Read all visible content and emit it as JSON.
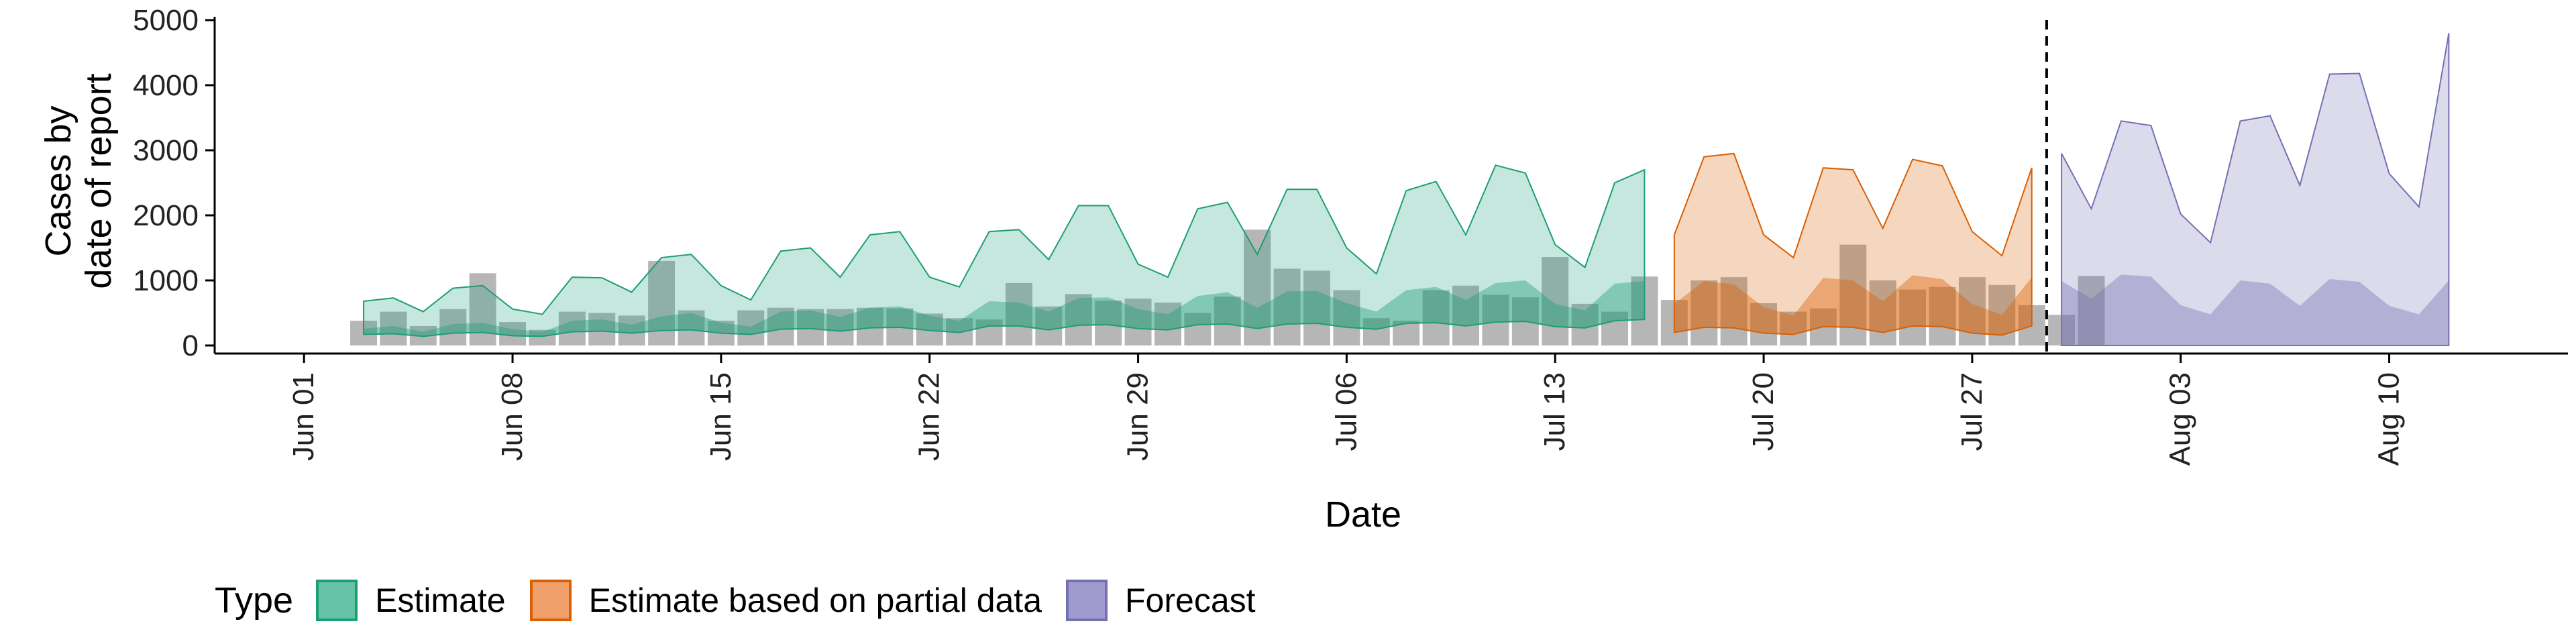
{
  "chart_data": {
    "type": "area",
    "xlabel": "Date",
    "ylabel_lines": [
      "Cases by",
      "date of report"
    ],
    "ylim": [
      0,
      5000
    ],
    "y_ticks": [
      0,
      1000,
      2000,
      3000,
      4000,
      5000
    ],
    "x_ticks": [
      {
        "date": "2020-06-01",
        "label": "Jun 01"
      },
      {
        "date": "2020-06-08",
        "label": "Jun 08"
      },
      {
        "date": "2020-06-15",
        "label": "Jun 15"
      },
      {
        "date": "2020-06-22",
        "label": "Jun 22"
      },
      {
        "date": "2020-06-29",
        "label": "Jun 29"
      },
      {
        "date": "2020-07-06",
        "label": "Jul 06"
      },
      {
        "date": "2020-07-13",
        "label": "Jul 13"
      },
      {
        "date": "2020-07-20",
        "label": "Jul 20"
      },
      {
        "date": "2020-07-27",
        "label": "Jul 27"
      },
      {
        "date": "2020-08-03",
        "label": "Aug 03"
      },
      {
        "date": "2020-08-10",
        "label": "Aug 10"
      }
    ],
    "xlim": [
      "2020-05-29",
      "2020-08-16"
    ],
    "forecast_line_date": "2020-07-29",
    "bar_color": "#9e9e9e",
    "observed_cases": {
      "start_date": "2020-06-03",
      "values": [
        380,
        520,
        300,
        560,
        1110,
        360,
        240,
        520,
        500,
        460,
        1300,
        540,
        380,
        540,
        580,
        560,
        560,
        580,
        570,
        490,
        420,
        400,
        960,
        600,
        790,
        690,
        720,
        660,
        500,
        750,
        1780,
        1180,
        1150,
        850,
        420,
        380,
        850,
        920,
        780,
        740,
        1360,
        640,
        520,
        1060,
        700,
        1000,
        1050,
        650,
        520,
        570,
        1550,
        1000,
        860,
        900,
        1050,
        930,
        620,
        470,
        1070
      ]
    },
    "legend": {
      "title": "Type",
      "items": [
        {
          "label": "Estimate",
          "fill": "#66c2a5",
          "stroke": "#1b9e77"
        },
        {
          "label": "Estimate based on partial data",
          "fill": "#f0a06a",
          "stroke": "#d95f02"
        },
        {
          "label": "Forecast",
          "fill": "#a09bcf",
          "stroke": "#7570b3"
        }
      ]
    },
    "series": [
      {
        "name": "Estimate",
        "color": "#1b9e77",
        "start_date": "2020-06-03",
        "upper90": [
          680,
          730,
          520,
          880,
          920,
          560,
          480,
          1050,
          1040,
          820,
          1350,
          1400,
          920,
          700,
          1450,
          1500,
          1050,
          1700,
          1750,
          1050,
          900,
          1750,
          1780,
          1320,
          2150,
          2150,
          1250,
          1050,
          2100,
          2200,
          1400,
          2400,
          2400,
          1500,
          1100,
          2380,
          2520,
          1700,
          2770,
          2650,
          1550,
          1200,
          2500,
          2700
        ],
        "upper50": [
          260,
          300,
          210,
          330,
          350,
          250,
          210,
          380,
          400,
          320,
          450,
          500,
          350,
          290,
          520,
          540,
          440,
          580,
          600,
          460,
          380,
          680,
          660,
          520,
          730,
          740,
          560,
          480,
          760,
          820,
          580,
          830,
          840,
          650,
          520,
          850,
          900,
          700,
          960,
          1000,
          640,
          540,
          950,
          990
        ],
        "lower": [
          170,
          180,
          140,
          190,
          200,
          150,
          140,
          210,
          220,
          190,
          230,
          240,
          190,
          170,
          250,
          260,
          220,
          270,
          280,
          230,
          200,
          300,
          300,
          240,
          310,
          320,
          260,
          240,
          320,
          330,
          260,
          330,
          340,
          280,
          250,
          340,
          350,
          300,
          360,
          370,
          290,
          270,
          380,
          400
        ]
      },
      {
        "name": "Estimate based on partial data",
        "color": "#d95f02",
        "start_date": "2020-07-17",
        "upper90": [
          1700,
          2900,
          2950,
          1700,
          1350,
          2730,
          2700,
          1800,
          2860,
          2760,
          1750,
          1380,
          2730
        ],
        "upper50": [
          640,
          990,
          940,
          590,
          460,
          1040,
          1000,
          680,
          1080,
          1020,
          640,
          470,
          1050
        ],
        "lower": [
          200,
          280,
          270,
          190,
          170,
          290,
          280,
          200,
          300,
          290,
          190,
          160,
          300
        ]
      },
      {
        "name": "Forecast",
        "color": "#7570b3",
        "start_date": "2020-07-30",
        "upper90": [
          2950,
          2100,
          3450,
          3380,
          2020,
          1580,
          3450,
          3530,
          2460,
          4170,
          4180,
          2640,
          2130,
          4800
        ],
        "upper50": [
          990,
          720,
          1090,
          1060,
          620,
          480,
          1000,
          950,
          610,
          1020,
          980,
          610,
          480,
          1000
        ],
        "lower": [
          0,
          0,
          0,
          0,
          0,
          0,
          0,
          0,
          0,
          0,
          0,
          0,
          0,
          0
        ]
      }
    ]
  }
}
